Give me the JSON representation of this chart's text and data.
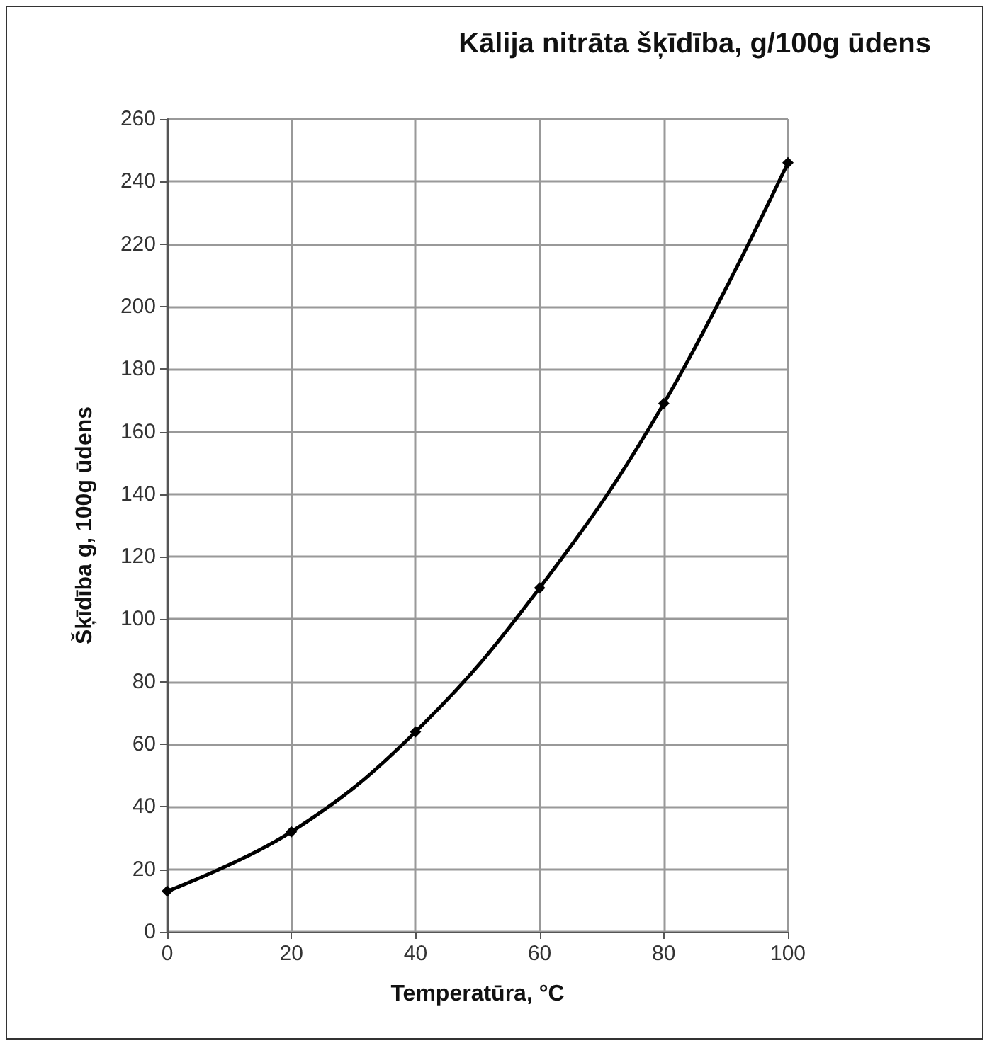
{
  "chart_data": {
    "type": "line",
    "title": "Kālija nitrāta šķīdība, g/100g ūdens",
    "xlabel": "Temperatūra, °C",
    "ylabel": "Šķīdība g, 100g ūdens",
    "x": [
      0,
      20,
      40,
      60,
      80,
      100
    ],
    "series": [
      {
        "color": "#000000",
        "values": [
          13,
          32,
          64,
          110,
          169,
          246
        ]
      }
    ],
    "xlim": [
      0,
      100
    ],
    "xticks": [
      0,
      20,
      40,
      60,
      80,
      100
    ],
    "ylim": [
      0,
      260
    ],
    "yticks": [
      0,
      20,
      40,
      60,
      80,
      100,
      120,
      140,
      160,
      180,
      200,
      220,
      240,
      260
    ],
    "grid": true,
    "marker": "diamond",
    "line_style": "solid"
  }
}
